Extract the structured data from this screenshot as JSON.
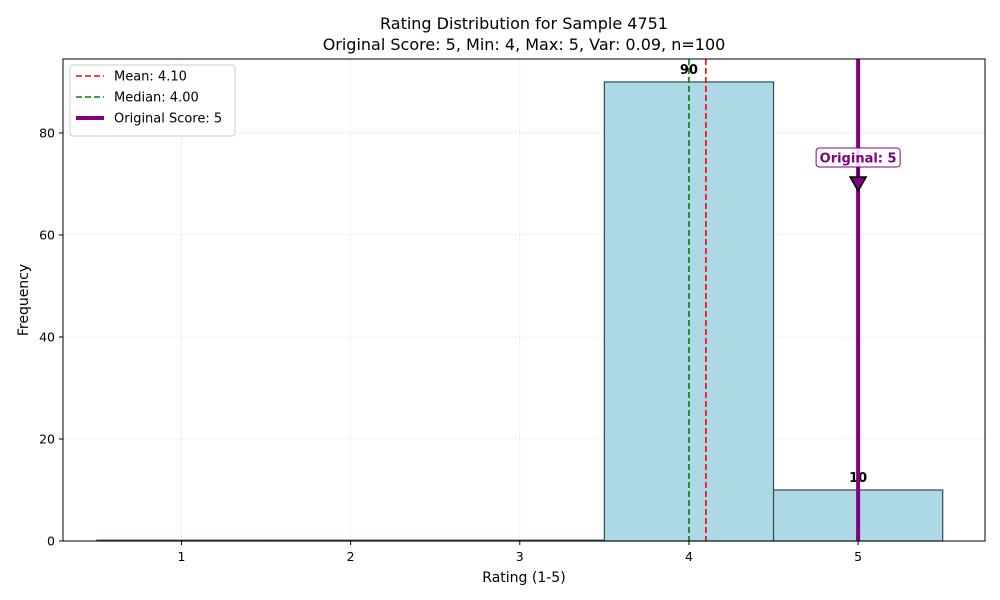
{
  "chart_data": {
    "type": "bar",
    "title": "Rating Distribution for Sample 4751",
    "subtitle": "Original Score: 5, Min: 4, Max: 5, Var: 0.09, n=100",
    "xlabel": "Rating (1-5)",
    "ylabel": "Frequency",
    "categories": [
      1,
      2,
      3,
      4,
      5
    ],
    "values": [
      0,
      0,
      0,
      90,
      10
    ],
    "bar_labels": [
      "",
      "",
      "",
      "90",
      "10"
    ],
    "xlim": [
      0.3,
      5.75
    ],
    "ylim": [
      0,
      94.5
    ],
    "xticks": [
      1,
      2,
      3,
      4,
      5
    ],
    "yticks": [
      0,
      20,
      40,
      60,
      80
    ],
    "grid": true,
    "bar_color": "#add8e6",
    "bar_edge_color": "#2f4f4f",
    "reference_lines": [
      {
        "label": "Mean: 4.10",
        "x": 4.1,
        "color": "#ff0000",
        "style": "dashed"
      },
      {
        "label": "Median: 4.00",
        "x": 4.0,
        "color": "#008000",
        "style": "dashed"
      },
      {
        "label": "Original Score: 5",
        "x": 5,
        "color": "#800080",
        "style": "solid"
      }
    ],
    "annotation": {
      "text": "Original: 5",
      "x": 5,
      "y": 75,
      "arrow_y": 70,
      "color": "#800080"
    },
    "legend_position": "upper-left"
  }
}
